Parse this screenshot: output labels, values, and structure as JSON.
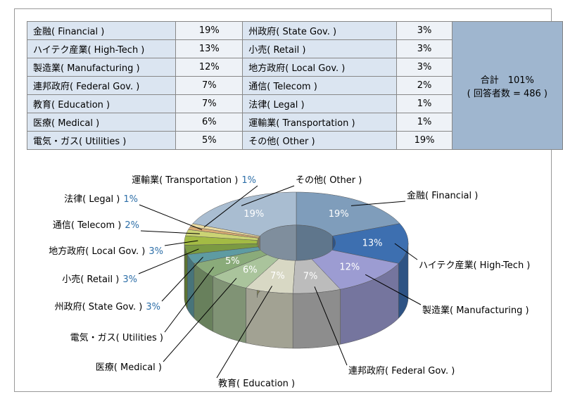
{
  "table": {
    "rows": [
      [
        "金融( Financial )",
        "19%",
        "州政府( State Gov. )",
        "3%"
      ],
      [
        "ハイテク産業( High-Tech )",
        "13%",
        "小売( Retail )",
        "3%"
      ],
      [
        "製造業( Manufacturing )",
        "12%",
        "地方政府( Local Gov. )",
        "3%"
      ],
      [
        "連邦政府( Federal Gov. )",
        "7%",
        "通信( Telecom )",
        "2%"
      ],
      [
        "教育( Education )",
        "7%",
        "法律( Legal )",
        "1%"
      ],
      [
        "医療( Medical )",
        "6%",
        "運輸業( Transportation )",
        "1%"
      ],
      [
        "電気・ガス( Utilities )",
        "5%",
        "その他( Other )",
        "19%"
      ]
    ],
    "total": "合計　101%",
    "respondents": "( 回答者数 = 486 )"
  },
  "chart_data": {
    "type": "pie",
    "categories": [
      "金融( Financial )",
      "ハイテク産業( High-Tech )",
      "製造業( Manufacturing )",
      "連邦政府( Federal Gov. )",
      "教育( Education )",
      "医療( Medical )",
      "電気・ガス( Utilities )",
      "州政府( State Gov. )",
      "小売( Retail )",
      "地方政府( Local Gov. )",
      "通信( Telecom )",
      "法律( Legal )",
      "運輸業( Transportation )",
      "その他( Other )"
    ],
    "values": [
      19,
      13,
      12,
      7,
      7,
      6,
      5,
      3,
      3,
      3,
      2,
      1,
      1,
      19
    ],
    "value_labels": [
      "19%",
      "13%",
      "12%",
      "7%",
      "7%",
      "6%",
      "5%",
      "3%",
      "3%",
      "3%",
      "2%",
      "1%",
      "1%",
      "19%"
    ],
    "colors": [
      "#7f9dbb",
      "#3d6fb0",
      "#9c9cd2",
      "#bcbcbc",
      "#d8d8c4",
      "#aac49c",
      "#8aab7a",
      "#5e9ba2",
      "#7b9a42",
      "#a3bb44",
      "#cbd374",
      "#d9aa72",
      "#eadba2",
      "#a9bdd1"
    ]
  }
}
